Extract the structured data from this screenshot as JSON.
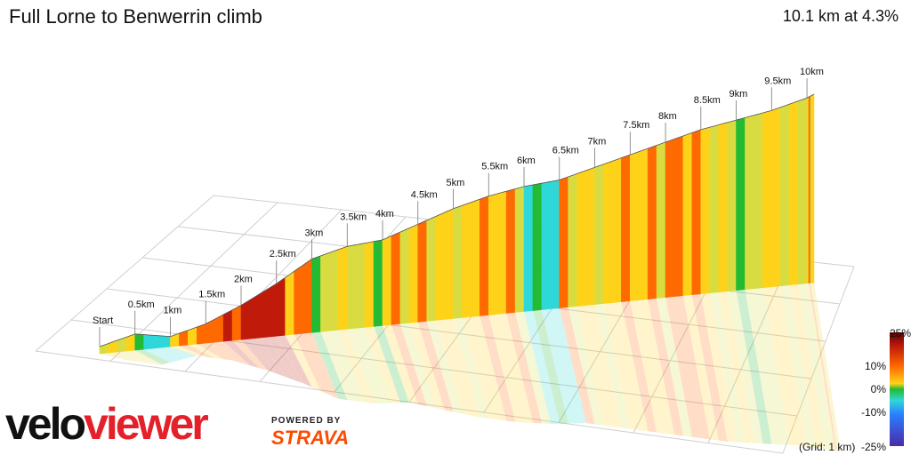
{
  "header": {
    "title": "Full Lorne to Benwerrin climb",
    "summary": "10.1 km at 4.3%"
  },
  "legend": {
    "labels": [
      "25%",
      "10%",
      "0%",
      "-10%",
      "-25%"
    ],
    "grid_note": "(Grid: 1 km)"
  },
  "branding": {
    "logo_part1": "velo",
    "logo_part2": "viewer",
    "powered_by": "POWERED BY",
    "strava": "STRAVA"
  },
  "colors": {
    "steep": "#c01a0a",
    "hard": "#ff6a00",
    "moderate": "#ffd21a",
    "easy": "#d8dc40",
    "flat": "#22bb33",
    "descent": "#2fd8d8",
    "brand_red": "#e4202a",
    "strava_orange": "#fc4c02"
  },
  "chart_data": {
    "type": "area",
    "title": "Full Lorne to Benwerrin climb",
    "distance_km": 10.1,
    "average_gradient_pct": 4.3,
    "markers": [
      {
        "label": "Start",
        "km": 0
      },
      {
        "label": "0.5km",
        "km": 0.5
      },
      {
        "label": "1km",
        "km": 1
      },
      {
        "label": "1.5km",
        "km": 1.5
      },
      {
        "label": "2km",
        "km": 2
      },
      {
        "label": "2.5km",
        "km": 2.5
      },
      {
        "label": "3km",
        "km": 3
      },
      {
        "label": "3.5km",
        "km": 3.5
      },
      {
        "label": "4km",
        "km": 4
      },
      {
        "label": "4.5km",
        "km": 4.5
      },
      {
        "label": "5km",
        "km": 5
      },
      {
        "label": "5.5km",
        "km": 5.5
      },
      {
        "label": "6km",
        "km": 6
      },
      {
        "label": "6.5km",
        "km": 6.5
      },
      {
        "label": "7km",
        "km": 7
      },
      {
        "label": "7.5km",
        "km": 7.5
      },
      {
        "label": "8km",
        "km": 8
      },
      {
        "label": "8.5km",
        "km": 8.5
      },
      {
        "label": "9km",
        "km": 9
      },
      {
        "label": "9.5km",
        "km": 9.5
      },
      {
        "label": "10km",
        "km": 10
      }
    ],
    "profile": {
      "km": [
        0,
        0.5,
        1,
        1.5,
        2,
        2.5,
        3,
        3.5,
        4,
        4.5,
        5,
        5.5,
        6,
        6.5,
        7,
        7.5,
        8,
        8.5,
        9,
        9.5,
        10,
        10.1
      ],
      "relative_height": [
        0,
        0.3,
        0.1,
        0.4,
        0.9,
        1.5,
        2.2,
        2.5,
        2.6,
        3.0,
        3.4,
        3.7,
        3.9,
        4.0,
        4.3,
        4.6,
        4.9,
        5.2,
        5.4,
        5.6,
        5.9,
        6.0
      ],
      "segment_gradients_pct": [
        4,
        -3,
        7,
        10,
        14,
        9,
        2,
        3,
        5,
        5,
        6,
        6,
        -2,
        5,
        6,
        6,
        8,
        4,
        3,
        4,
        6
      ]
    },
    "legend_scale_pct": [
      25,
      10,
      0,
      -10,
      -25
    ],
    "grid_km": 1
  }
}
